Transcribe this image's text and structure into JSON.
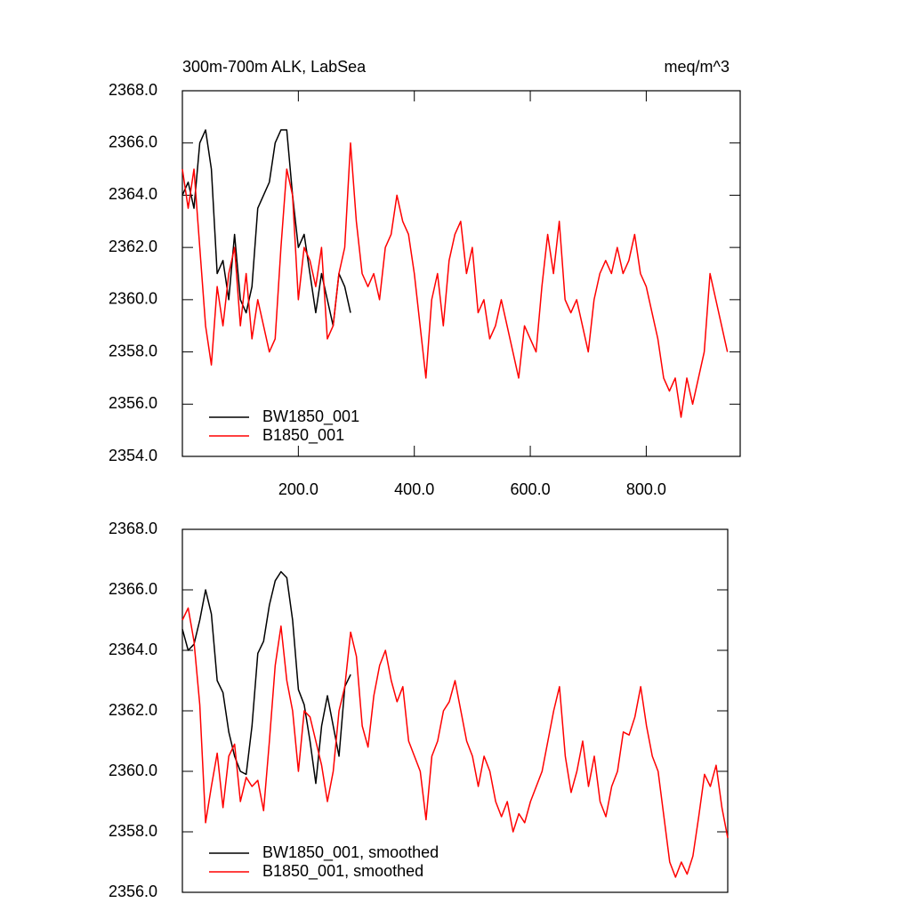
{
  "chart_data": [
    {
      "type": "line",
      "title": "300m-700m ALK, LabSea",
      "units_label": "meq/m^3",
      "x": [
        0,
        10,
        20,
        30,
        40,
        50,
        60,
        70,
        80,
        90,
        100,
        110,
        120,
        130,
        140,
        150,
        160,
        170,
        180,
        190,
        200,
        210,
        220,
        230,
        240,
        250,
        260,
        270,
        280,
        290,
        300,
        310,
        320,
        330,
        340,
        350,
        360,
        370,
        380,
        390,
        400,
        410,
        420,
        430,
        440,
        450,
        460,
        470,
        480,
        490,
        500,
        510,
        520,
        530,
        540,
        550,
        560,
        570,
        580,
        590,
        600,
        610,
        620,
        630,
        640,
        650,
        660,
        670,
        680,
        690,
        700,
        710,
        720,
        730,
        740,
        750,
        760,
        770,
        780,
        790,
        800,
        810,
        820,
        830,
        840,
        850,
        860,
        870,
        880,
        890,
        900,
        910,
        920,
        930,
        940
      ],
      "series": [
        {
          "name": "BW1850_001",
          "color": "#000000",
          "values": [
            2364,
            2364.5,
            2363.5,
            2366,
            2366.5,
            2365,
            2361,
            2361.5,
            2360,
            2362.5,
            2360,
            2359.5,
            2360.5,
            2363.5,
            2364,
            2364.5,
            2366,
            2366.5,
            2366.5,
            2364,
            2362,
            2362.5,
            2361,
            2359.5,
            2361,
            2360,
            2359,
            2361,
            2360.5,
            2359.5,
            null,
            null,
            null,
            null,
            null,
            null,
            null,
            null,
            null,
            null,
            null,
            null,
            null,
            null,
            null,
            null,
            null,
            null,
            null,
            null,
            null,
            null,
            null,
            null,
            null,
            null,
            null,
            null,
            null,
            null,
            null,
            null,
            null,
            null,
            null,
            null,
            null,
            null,
            null,
            null,
            null,
            null,
            null,
            null,
            null,
            null,
            null,
            null,
            null,
            null,
            null,
            null,
            null,
            null,
            null,
            null,
            null,
            null,
            null,
            null,
            null,
            null,
            null,
            null,
            null
          ]
        },
        {
          "name": "B1850_001",
          "color": "#ff0000",
          "values": [
            2365,
            2363.5,
            2365,
            2362,
            2359,
            2357.5,
            2360.5,
            2359,
            2361,
            2362,
            2359,
            2361,
            2358.5,
            2360,
            2359,
            2358,
            2358.5,
            2362,
            2365,
            2364,
            2360,
            2362,
            2361.5,
            2360.5,
            2362,
            2358.5,
            2359,
            2361,
            2362,
            2366,
            2363,
            2361,
            2360.5,
            2361,
            2360,
            2362,
            2362.5,
            2364,
            2363,
            2362.5,
            2361,
            2359,
            2357,
            2360,
            2361,
            2359,
            2361.5,
            2362.5,
            2363,
            2361,
            2362,
            2359.5,
            2360,
            2358.5,
            2359,
            2360,
            2359,
            2358,
            2357,
            2359,
            2358.5,
            2358,
            2360.5,
            2362.5,
            2361,
            2363,
            2360,
            2359.5,
            2360,
            2359,
            2358,
            2360,
            2361,
            2361.5,
            2361,
            2362,
            2361,
            2361.5,
            2362.5,
            2361,
            2360.5,
            2359.5,
            2358.5,
            2357,
            2356.5,
            2357,
            2355.5,
            2357,
            2356,
            2357,
            2358,
            2361,
            2360,
            2359,
            2358
          ]
        }
      ],
      "xlim": [
        0,
        962
      ],
      "xticks": [
        {
          "value": 200,
          "label": "200.0"
        },
        {
          "value": 400,
          "label": "400.0"
        },
        {
          "value": 600,
          "label": "600.0"
        },
        {
          "value": 800,
          "label": "800.0"
        }
      ],
      "ylim": [
        2354,
        2368
      ],
      "yticks": [
        {
          "value": 2354,
          "label": "2354.0"
        },
        {
          "value": 2356,
          "label": "2356.0"
        },
        {
          "value": 2358,
          "label": "2358.0"
        },
        {
          "value": 2360,
          "label": "2360.0"
        },
        {
          "value": 2362,
          "label": "2362.0"
        },
        {
          "value": 2364,
          "label": "2364.0"
        },
        {
          "value": 2366,
          "label": "2366.0"
        },
        {
          "value": 2368,
          "label": "2368.0"
        }
      ],
      "legend": "lower left"
    },
    {
      "type": "line",
      "x": [
        0,
        10,
        20,
        30,
        40,
        50,
        60,
        70,
        80,
        90,
        100,
        110,
        120,
        130,
        140,
        150,
        160,
        170,
        180,
        190,
        200,
        210,
        220,
        230,
        240,
        250,
        260,
        270,
        280,
        290,
        300,
        310,
        320,
        330,
        340,
        350,
        360,
        370,
        380,
        390,
        400,
        410,
        420,
        430,
        440,
        450,
        460,
        470,
        480,
        490,
        500,
        510,
        520,
        530,
        540,
        550,
        560,
        570,
        580,
        590,
        600,
        610,
        620,
        630,
        640,
        650,
        660,
        670,
        680,
        690,
        700,
        710,
        720,
        730,
        740,
        750,
        760,
        770,
        780,
        790,
        800,
        810,
        820,
        830,
        840,
        850,
        860,
        870,
        880,
        890,
        900,
        910,
        920,
        930,
        940
      ],
      "series": [
        {
          "name": "BW1850_001, smoothed",
          "color": "#000000",
          "values": [
            2364.7,
            2364,
            2364.2,
            2365,
            2366,
            2365.2,
            2363,
            2362.6,
            2361.3,
            2360.5,
            2360,
            2359.9,
            2361.5,
            2363.9,
            2364.3,
            2365.5,
            2366.3,
            2366.6,
            2366.4,
            2365,
            2362.7,
            2362.2,
            2361,
            2359.6,
            2361.5,
            2362.5,
            2361.5,
            2360.5,
            2362.8,
            2363.2,
            null,
            null,
            null,
            null,
            null,
            null,
            null,
            null,
            null,
            null,
            null,
            null,
            null,
            null,
            null,
            null,
            null,
            null,
            null,
            null,
            null,
            null,
            null,
            null,
            null,
            null,
            null,
            null,
            null,
            null,
            null,
            null,
            null,
            null,
            null,
            null,
            null,
            null,
            null,
            null,
            null,
            null,
            null,
            null,
            null,
            null,
            null,
            null,
            null,
            null,
            null,
            null,
            null,
            null,
            null,
            null,
            null,
            null,
            null,
            null,
            null,
            null,
            null,
            null,
            null
          ]
        },
        {
          "name": "B1850_001, smoothed",
          "color": "#ff0000",
          "values": [
            2365,
            2365.4,
            2364.3,
            2362.2,
            2358.3,
            2359.5,
            2360.6,
            2358.8,
            2360.5,
            2360.9,
            2359,
            2359.8,
            2359.5,
            2359.7,
            2358.7,
            2361,
            2363.5,
            2364.8,
            2363,
            2362,
            2360,
            2362,
            2361.8,
            2361,
            2360.2,
            2359,
            2360,
            2362,
            2362.8,
            2364.6,
            2363.8,
            2361.5,
            2360.8,
            2362.5,
            2363.5,
            2364,
            2363,
            2362.3,
            2362.8,
            2361,
            2360.5,
            2360,
            2358.4,
            2360.5,
            2361,
            2362,
            2362.3,
            2363,
            2362,
            2361,
            2360.5,
            2359.5,
            2360.5,
            2360,
            2359,
            2358.5,
            2359,
            2358,
            2358.6,
            2358.3,
            2359,
            2359.5,
            2360,
            2361,
            2362,
            2362.8,
            2360.5,
            2359.3,
            2360,
            2361,
            2359.5,
            2360.5,
            2359,
            2358.5,
            2359.5,
            2360,
            2361.3,
            2361.2,
            2361.8,
            2362.8,
            2361.5,
            2360.5,
            2360,
            2358.5,
            2357,
            2356.5,
            2357,
            2356.6,
            2357.2,
            2358.5,
            2359.9,
            2359.5,
            2360.2,
            2358.8,
            2357.8
          ]
        }
      ],
      "xlim": [
        0,
        940
      ],
      "ylim": [
        2356,
        2368
      ],
      "yticks": [
        {
          "value": 2356,
          "label": "2356.0"
        },
        {
          "value": 2358,
          "label": "2358.0"
        },
        {
          "value": 2360,
          "label": "2360.0"
        },
        {
          "value": 2362,
          "label": "2362.0"
        },
        {
          "value": 2364,
          "label": "2364.0"
        },
        {
          "value": 2366,
          "label": "2366.0"
        },
        {
          "value": 2368,
          "label": "2368.0"
        }
      ],
      "legend": "lower left"
    }
  ]
}
